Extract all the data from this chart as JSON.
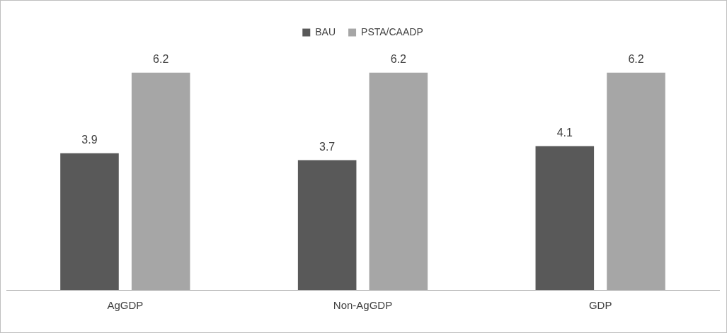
{
  "chart_data": {
    "type": "bar",
    "categories": [
      "AgGDP",
      "Non-AgGDP",
      "GDP"
    ],
    "series": [
      {
        "name": "BAU",
        "color": "#595959",
        "values": [
          3.9,
          3.7,
          4.1
        ]
      },
      {
        "name": "PSTA/CAADP",
        "color": "#a6a6a6",
        "values": [
          6.2,
          6.2,
          6.2
        ]
      }
    ],
    "data_labels": true,
    "legend": "top",
    "grid": false
  }
}
